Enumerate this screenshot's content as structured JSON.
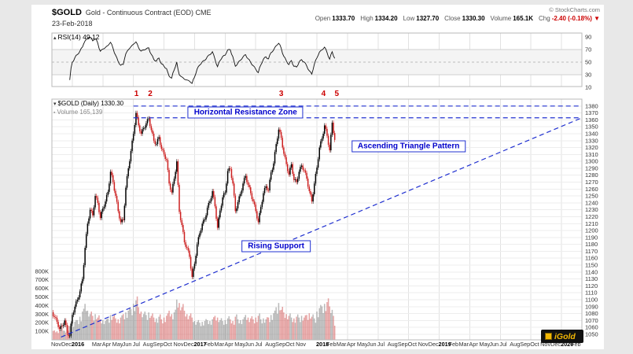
{
  "header": {
    "symbol": "$GOLD",
    "title": "Gold - Continuous Contract (EOD) CME",
    "date": "23-Feb-2018",
    "copyright": "© StockCharts.com",
    "quote_items": [
      {
        "label": "Open",
        "value": "1333.70"
      },
      {
        "label": "High",
        "value": "1334.20"
      },
      {
        "label": "Low",
        "value": "1327.70"
      },
      {
        "label": "Close",
        "value": "1330.30"
      },
      {
        "label": "Volume",
        "value": "165.1K"
      },
      {
        "label": "Chg",
        "value": "-2.40 (-0.18%) ▼",
        "color": "#cc0000"
      }
    ]
  },
  "rsi_panel": {
    "legend": "RSI(14) 49.12"
  },
  "main_panel": {
    "legend_price": "$GOLD (Daily) 1330.30",
    "legend_volume": "Volume 165,139"
  },
  "logo": {
    "text": "iGold"
  },
  "chart_data": {
    "type": "candlestick",
    "title": "$GOLD Gold - Continuous Contract (EOD) CME",
    "subpanels": [
      "RSI(14)",
      "price+volume"
    ],
    "x_unit": "months since 1-Nov-2015",
    "x_range": [
      0,
      52
    ],
    "x_gridlines": [
      2,
      5,
      8,
      11,
      14,
      17,
      20,
      23,
      26,
      29,
      32,
      35,
      38,
      41,
      44,
      47,
      50
    ],
    "x_labels": [
      [
        0,
        "Nov"
      ],
      [
        1,
        "Dec"
      ],
      [
        2,
        "2016"
      ],
      [
        4,
        "Mar"
      ],
      [
        5,
        "Apr"
      ],
      [
        6,
        "May"
      ],
      [
        7,
        "Jun"
      ],
      [
        8,
        "Jul"
      ],
      [
        9,
        "Aug"
      ],
      [
        10,
        "Sep"
      ],
      [
        11,
        "Oct"
      ],
      [
        12,
        "Nov"
      ],
      [
        13,
        "Dec"
      ],
      [
        14,
        "2017"
      ],
      [
        15,
        "Feb"
      ],
      [
        16,
        "Mar"
      ],
      [
        17,
        "Apr"
      ],
      [
        18,
        "May"
      ],
      [
        19,
        "Jun"
      ],
      [
        20,
        "Jul"
      ],
      [
        21,
        "Aug"
      ],
      [
        22,
        "Sep"
      ],
      [
        23,
        "Oct"
      ],
      [
        24,
        "Nov"
      ],
      [
        26,
        "2018"
      ],
      [
        27,
        "Feb"
      ],
      [
        28,
        "Mar"
      ],
      [
        29,
        "Apr"
      ],
      [
        30,
        "May"
      ],
      [
        31,
        "Jun"
      ],
      [
        32,
        "Jul"
      ],
      [
        33,
        "Aug"
      ],
      [
        34,
        "Sep"
      ],
      [
        35,
        "Oct"
      ],
      [
        36,
        "Nov"
      ],
      [
        37,
        "Dec"
      ],
      [
        38,
        "2019"
      ],
      [
        39,
        "Feb"
      ],
      [
        40,
        "Mar"
      ],
      [
        41,
        "Apr"
      ],
      [
        42,
        "May"
      ],
      [
        43,
        "Jun"
      ],
      [
        44,
        "Jul"
      ],
      [
        45,
        "Aug"
      ],
      [
        46,
        "Sep"
      ],
      [
        47,
        "Oct"
      ],
      [
        48,
        "Nov"
      ],
      [
        49,
        "Dec"
      ],
      [
        50,
        "2020"
      ],
      [
        51,
        "Feb"
      ]
    ],
    "price_axis": {
      "min": 1050,
      "max": 1380,
      "step": 10,
      "shown_range": [
        1050,
        1380
      ]
    },
    "volume_axis": {
      "min": 100,
      "max": 800,
      "step": 100,
      "unit": "K"
    },
    "rsi_axis": {
      "ticks": [
        90,
        70,
        50,
        30,
        10
      ],
      "band": [
        30,
        70
      ],
      "mid": 50,
      "period": 14,
      "last_value": 49.12
    },
    "last_close": 1330.3,
    "weekly": {
      "t_start": 0,
      "t_step": 0.25,
      "closes": [
        1082,
        1075,
        1068,
        1058,
        1062,
        1070,
        1052,
        1048,
        1078,
        1090,
        1100,
        1112,
        1130,
        1175,
        1210,
        1230,
        1222,
        1250,
        1240,
        1218,
        1232,
        1242,
        1256,
        1285,
        1270,
        1250,
        1228,
        1212,
        1215,
        1262,
        1290,
        1315,
        1340,
        1370,
        1352,
        1340,
        1348,
        1355,
        1362,
        1345,
        1330,
        1325,
        1335,
        1318,
        1310,
        1302,
        1268,
        1255,
        1275,
        1300,
        1227,
        1208,
        1183,
        1175,
        1162,
        1133,
        1152,
        1180,
        1196,
        1210,
        1216,
        1233,
        1242,
        1257,
        1235,
        1204,
        1229,
        1248,
        1255,
        1286,
        1289,
        1268,
        1228,
        1241,
        1253,
        1268,
        1279,
        1266,
        1254,
        1242,
        1228,
        1212,
        1234,
        1254,
        1264,
        1258,
        1284,
        1297,
        1325,
        1346,
        1334,
        1311,
        1296,
        1281,
        1296,
        1273,
        1270,
        1285,
        1294,
        1287,
        1275,
        1257,
        1242,
        1268,
        1291,
        1320,
        1333,
        1352,
        1337,
        1316,
        1356,
        1331
      ],
      "volumes_k": [
        95,
        110,
        100,
        125,
        135,
        105,
        150,
        160,
        190,
        210,
        230,
        270,
        330,
        420,
        340,
        300,
        280,
        300,
        260,
        240,
        230,
        220,
        250,
        290,
        270,
        250,
        240,
        260,
        300,
        320,
        340,
        360,
        420,
        460,
        380,
        330,
        300,
        290,
        320,
        280,
        260,
        250,
        270,
        240,
        260,
        280,
        340,
        300,
        320,
        470,
        430,
        380,
        340,
        300,
        280,
        260,
        220,
        210,
        200,
        210,
        220,
        230,
        220,
        240,
        280,
        260,
        230,
        220,
        230,
        250,
        240,
        220,
        270,
        240,
        230,
        240,
        290,
        260,
        250,
        240,
        260,
        280,
        240,
        250,
        240,
        260,
        290,
        310,
        380,
        430,
        350,
        320,
        300,
        280,
        260,
        250,
        270,
        260,
        280,
        260,
        290,
        310,
        270,
        250,
        330,
        370,
        390,
        420,
        440,
        390,
        350,
        165
      ]
    },
    "annotations": {
      "resistance_zone": {
        "label": "Horizontal Resistance Zone",
        "upper_price": 1380,
        "lower_price": 1363,
        "t_start": 8,
        "t_end": 52,
        "label_t": 19,
        "label_price": 1371
      },
      "triangle": {
        "label": "Ascending Triangle Pattern",
        "label_t": 35,
        "label_price": 1322
      },
      "support": {
        "label": "Rising Support",
        "t0": 0.9,
        "p0": 1046,
        "t1": 52,
        "p1": 1363,
        "label_t": 22,
        "label_price": 1177
      },
      "peak_markers": [
        {
          "label": "1",
          "t": 8.3
        },
        {
          "label": "2",
          "t": 9.65
        },
        {
          "label": "3",
          "t": 22.5
        },
        {
          "label": "4",
          "t": 26.65
        },
        {
          "label": "5",
          "t": 27.95
        }
      ]
    },
    "colors": {
      "candle_up": "#000000",
      "candle_down": "#cc2020",
      "volume_up": "rgba(130,130,130,0.55)",
      "volume_down": "rgba(210,90,90,0.55)",
      "trendline": "#2030d0",
      "annotation_text": "#0000cc",
      "marker": "#cc0000",
      "rsi_line": "#111111"
    }
  }
}
